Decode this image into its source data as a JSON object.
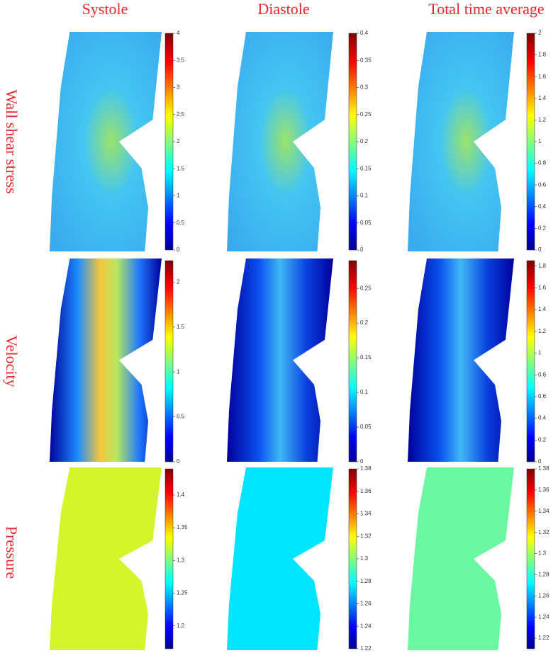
{
  "columns": [
    "Systole",
    "Diastole",
    "Total time average"
  ],
  "rows": [
    {
      "label": "Wall shear stress",
      "colorbars": [
        {
          "lim": [
            0,
            4
          ],
          "ticks": [
            0,
            0.5,
            1,
            1.5,
            2,
            2.5,
            3,
            3.5,
            4
          ]
        },
        {
          "lim": [
            0,
            0.4
          ],
          "ticks": [
            0,
            0.05,
            0.1,
            0.15,
            0.2,
            0.25,
            0.3,
            0.35,
            0.4
          ]
        },
        {
          "lim": [
            0,
            2
          ],
          "ticks": [
            0,
            0.2,
            0.4,
            0.6,
            0.8,
            1,
            1.2,
            1.4,
            1.6,
            1.8,
            2
          ]
        }
      ]
    },
    {
      "label": "Velocity",
      "colorbars": [
        {
          "lim": [
            0,
            2.24
          ],
          "ticks": [
            0,
            0.5,
            1,
            1.5,
            2
          ]
        },
        {
          "lim": [
            0,
            0.29
          ],
          "ticks": [
            0,
            0.05,
            0.1,
            0.15,
            0.2,
            0.25
          ]
        },
        {
          "lim": [
            0,
            1.85
          ],
          "ticks": [
            0,
            0.2,
            0.4,
            0.6,
            0.8,
            1,
            1.2,
            1.4,
            1.6,
            1.8
          ]
        }
      ]
    },
    {
      "label": "Pressure",
      "colorbars": [
        {
          "lim": [
            1.165,
            1.44
          ],
          "ticks": [
            1.2,
            1.25,
            1.3,
            1.35,
            1.4
          ]
        },
        {
          "lim": [
            1.22,
            1.38
          ],
          "ticks": [
            1.22,
            1.24,
            1.26,
            1.28,
            1.3,
            1.32,
            1.34,
            1.36,
            1.38
          ]
        },
        {
          "lim": [
            1.21,
            1.38
          ],
          "ticks": [
            1.22,
            1.24,
            1.26,
            1.28,
            1.3,
            1.32,
            1.34,
            1.36,
            1.38
          ]
        }
      ]
    }
  ]
}
